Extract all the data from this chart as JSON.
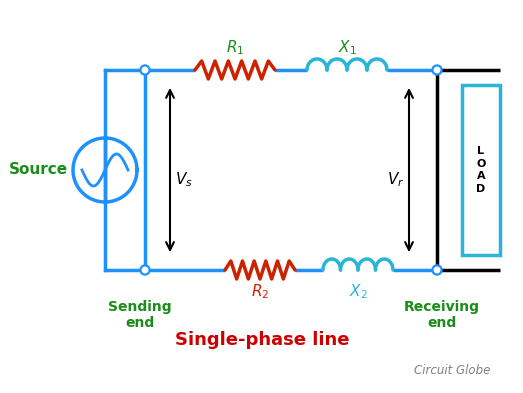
{
  "bg_color": "#ffffff",
  "wire_color_blue": "#1e90ff",
  "wire_color_black": "#000000",
  "resistor_color": "#cc2200",
  "inductor_color": "#29b6d6",
  "label_color_green": "#1a8c1a",
  "label_color_red": "#cc0000",
  "load_box_color": "#29b6d6",
  "title": "Single-phase line",
  "title_color": "#cc0000",
  "watermark": "Circuit Globe",
  "source_label": "Source",
  "sending_label": "Sending\nend",
  "receiving_label": "Receiving\nend"
}
